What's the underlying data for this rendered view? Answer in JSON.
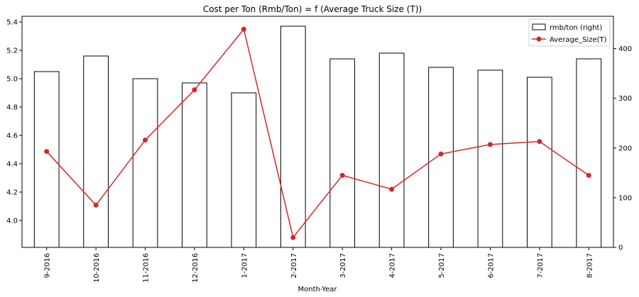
{
  "chart_data": {
    "type": "bar+line",
    "title": "Cost per Ton (Rmb/Ton) = f (Average Truck Size (T))",
    "xlabel": "Month-Year",
    "ylabel_left": "",
    "ylabel_right": "",
    "categories": [
      "9-2016",
      "10-2016",
      "11-2016",
      "12-2016",
      "1-2017",
      "2-2017",
      "3-2017",
      "4-2017",
      "5-2017",
      "6-2017",
      "7-2017",
      "8-2017"
    ],
    "y_left": {
      "lim": [
        3.81,
        5.44
      ],
      "ticks": [
        4.0,
        4.2,
        4.4,
        4.6,
        4.8,
        5.0,
        5.2,
        5.4
      ]
    },
    "y_right": {
      "lim": [
        0,
        465
      ],
      "ticks": [
        0,
        100,
        200,
        300,
        400
      ]
    },
    "series": [
      {
        "name": "rmb/ton (right)",
        "kind": "bar",
        "axis": "left",
        "color": "#ffffff",
        "edge": "#000000",
        "values": [
          5.05,
          5.16,
          5.0,
          4.97,
          4.9,
          5.37,
          5.14,
          5.18,
          5.08,
          5.06,
          5.01,
          5.14
        ]
      },
      {
        "name": "Average_Size(T)",
        "kind": "line",
        "axis": "right",
        "color": "#d62728",
        "values": [
          193,
          85,
          216,
          317,
          439,
          20,
          145,
          117,
          188,
          207,
          213,
          145
        ]
      }
    ],
    "legend_position": "top-right",
    "grid": false
  }
}
